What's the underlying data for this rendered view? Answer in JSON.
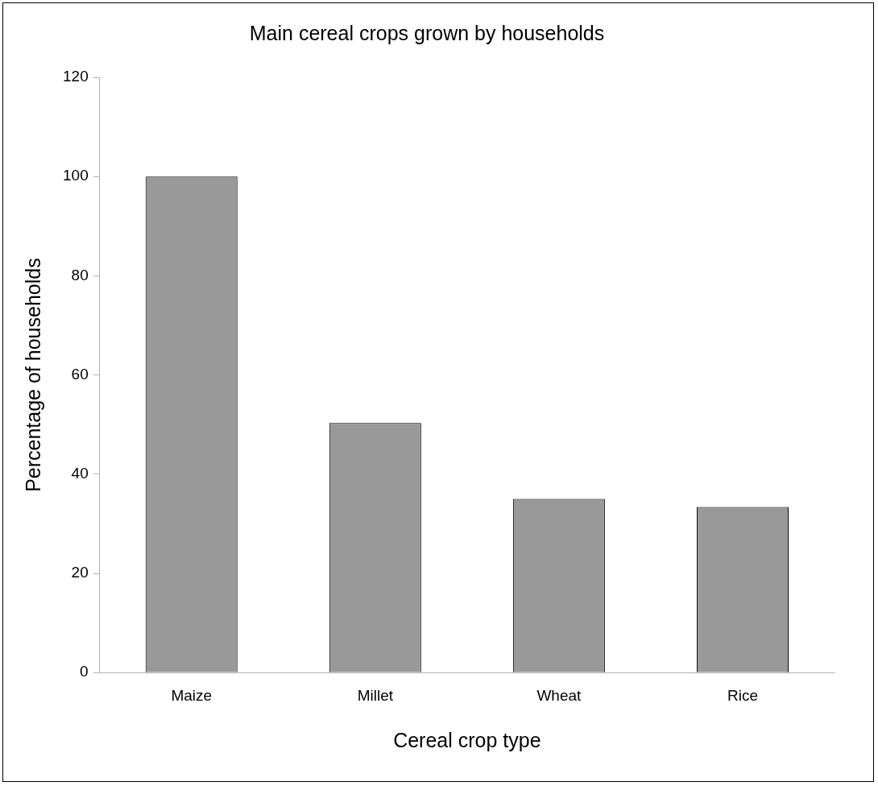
{
  "chart_data": {
    "type": "bar",
    "title": "Main cereal crops grown by households",
    "xlabel": "Cereal crop type",
    "ylabel": "Percentage of households",
    "categories": [
      "Maize",
      "Millet",
      "Wheat",
      "Rice"
    ],
    "values": [
      100,
      50.3,
      35,
      33.4
    ],
    "color": "#999999",
    "ylim": [
      0,
      120
    ],
    "yticks": [
      0,
      20,
      40,
      60,
      80,
      100,
      120
    ],
    "grid": false,
    "legend": false
  }
}
